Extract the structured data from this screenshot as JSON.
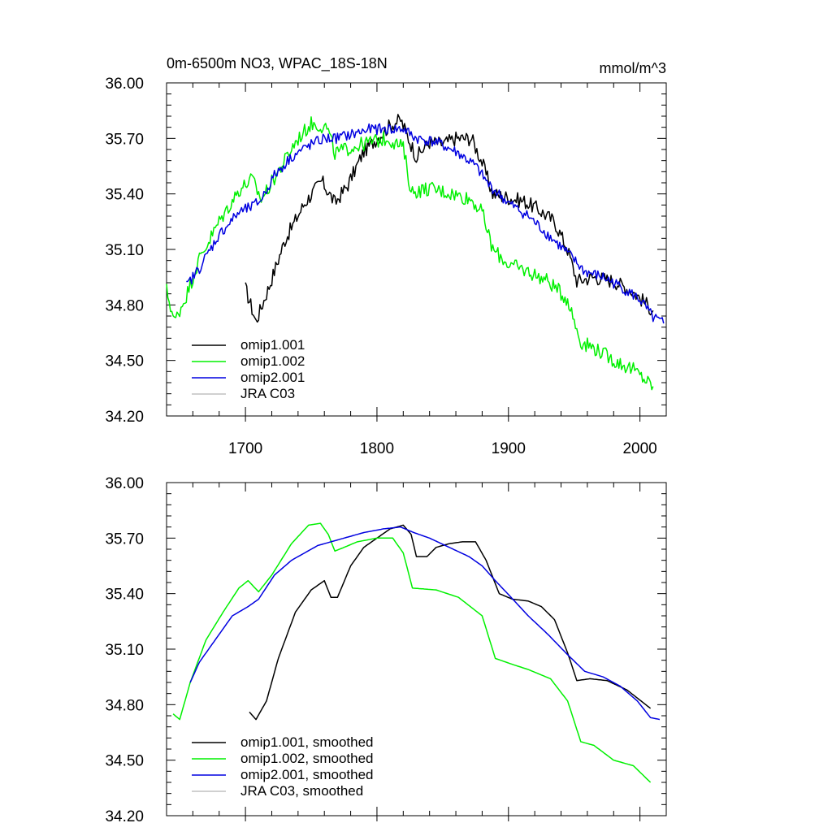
{
  "chart_data": [
    {
      "type": "line",
      "title": "0m-6500m NO3, WPAC_18S-18N",
      "units": "mmol/m^3",
      "xlim": [
        1640,
        2020
      ],
      "ylim": [
        34.2,
        36.0
      ],
      "xticks": [
        "1700",
        "1800",
        "1900",
        "2000"
      ],
      "yticks": [
        "34.20",
        "34.50",
        "34.80",
        "35.10",
        "35.40",
        "35.70",
        "36.00"
      ],
      "legend": [
        "omip1.001",
        "omip1.002",
        "omip2.001",
        "JRA C03"
      ],
      "series": [
        {
          "name": "omip1.001",
          "color": "#000000",
          "noise": 0.04,
          "x": [
            1700,
            1708,
            1718,
            1730,
            1745,
            1758,
            1768,
            1778,
            1790,
            1800,
            1810,
            1818,
            1824,
            1830,
            1840,
            1850,
            1860,
            1872,
            1880,
            1888,
            1900,
            1912,
            1922,
            1935,
            1945,
            1952,
            1965,
            1980,
            1995,
            2010
          ],
          "y": [
            34.89,
            34.71,
            34.9,
            35.15,
            35.35,
            35.47,
            35.35,
            35.45,
            35.63,
            35.7,
            35.77,
            35.8,
            35.7,
            35.6,
            35.68,
            35.67,
            35.7,
            35.7,
            35.57,
            35.4,
            35.38,
            35.36,
            35.32,
            35.25,
            35.1,
            34.93,
            34.95,
            34.93,
            34.87,
            34.77
          ]
        },
        {
          "name": "omip1.002",
          "color": "#00f000",
          "noise": 0.04,
          "x": [
            1640,
            1646,
            1655,
            1665,
            1680,
            1695,
            1705,
            1712,
            1725,
            1738,
            1750,
            1762,
            1768,
            1780,
            1795,
            1808,
            1820,
            1826,
            1840,
            1858,
            1872,
            1880,
            1888,
            1900,
            1915,
            1930,
            1945,
            1955,
            1965,
            1980,
            1995,
            2010
          ],
          "y": [
            34.88,
            34.71,
            34.85,
            35.05,
            35.25,
            35.42,
            35.48,
            35.37,
            35.52,
            35.68,
            35.78,
            35.76,
            35.62,
            35.65,
            35.68,
            35.7,
            35.65,
            35.41,
            35.43,
            35.4,
            35.37,
            35.3,
            35.1,
            35.02,
            34.98,
            34.93,
            34.83,
            34.6,
            34.57,
            34.5,
            34.45,
            34.36
          ]
        },
        {
          "name": "omip2.001",
          "color": "#0000e0",
          "noise": 0.03,
          "x": [
            1655,
            1665,
            1680,
            1695,
            1705,
            1712,
            1722,
            1735,
            1748,
            1760,
            1768,
            1780,
            1795,
            1810,
            1820,
            1830,
            1845,
            1862,
            1875,
            1885,
            1900,
            1915,
            1930,
            1945,
            1958,
            1972,
            1985,
            2000,
            2010,
            2018
          ],
          "y": [
            34.9,
            35.0,
            35.18,
            35.3,
            35.33,
            35.37,
            35.5,
            35.6,
            35.66,
            35.7,
            35.7,
            35.72,
            35.75,
            35.75,
            35.75,
            35.7,
            35.68,
            35.62,
            35.55,
            35.45,
            35.35,
            35.28,
            35.18,
            35.08,
            34.98,
            34.95,
            34.9,
            34.83,
            34.73,
            34.7
          ]
        },
        {
          "name": "JRA C03",
          "color": "#c0c0c0",
          "noise": 0,
          "x": [],
          "y": []
        }
      ]
    },
    {
      "type": "line",
      "title": "",
      "units": "",
      "xlim": [
        1640,
        2020
      ],
      "ylim": [
        34.2,
        36.0
      ],
      "xticks": [],
      "yticks": [
        "34.20",
        "34.50",
        "34.80",
        "35.10",
        "35.40",
        "35.70",
        "36.00"
      ],
      "legend": [
        "omip1.001, smoothed",
        "omip1.002, smoothed",
        "omip2.001, smoothed",
        "JRA C03, smoothed"
      ],
      "series": [
        {
          "name": "omip1.001, smoothed",
          "color": "#000000",
          "noise": 0,
          "x": [
            1703,
            1708,
            1716,
            1725,
            1738,
            1750,
            1760,
            1765,
            1770,
            1780,
            1790,
            1800,
            1810,
            1820,
            1826,
            1830,
            1838,
            1845,
            1855,
            1865,
            1875,
            1883,
            1893,
            1903,
            1915,
            1925,
            1935,
            1945,
            1952,
            1962,
            1975,
            1990,
            2008
          ],
          "y": [
            34.76,
            34.72,
            34.82,
            35.05,
            35.3,
            35.42,
            35.47,
            35.38,
            35.38,
            35.55,
            35.65,
            35.7,
            35.75,
            35.77,
            35.72,
            35.6,
            35.6,
            35.65,
            35.67,
            35.68,
            35.68,
            35.58,
            35.4,
            35.37,
            35.36,
            35.33,
            35.26,
            35.08,
            34.93,
            34.94,
            34.93,
            34.88,
            34.78
          ]
        },
        {
          "name": "omip1.002, smoothed",
          "color": "#00f000",
          "noise": 0,
          "x": [
            1645,
            1650,
            1658,
            1670,
            1683,
            1695,
            1702,
            1710,
            1720,
            1735,
            1748,
            1757,
            1763,
            1768,
            1775,
            1785,
            1800,
            1812,
            1820,
            1827,
            1845,
            1862,
            1880,
            1890,
            1902,
            1915,
            1932,
            1945,
            1955,
            1965,
            1980,
            1995,
            2008
          ],
          "y": [
            34.75,
            34.72,
            34.92,
            35.15,
            35.3,
            35.43,
            35.47,
            35.41,
            35.5,
            35.67,
            35.77,
            35.78,
            35.72,
            35.63,
            35.65,
            35.68,
            35.7,
            35.7,
            35.62,
            35.43,
            35.42,
            35.38,
            35.28,
            35.05,
            35.02,
            34.99,
            34.94,
            34.82,
            34.6,
            34.58,
            34.5,
            34.47,
            34.38
          ]
        },
        {
          "name": "omip2.001, smoothed",
          "color": "#0000e0",
          "noise": 0,
          "x": [
            1658,
            1665,
            1675,
            1690,
            1702,
            1710,
            1722,
            1735,
            1745,
            1755,
            1765,
            1775,
            1790,
            1805,
            1818,
            1828,
            1840,
            1855,
            1870,
            1880,
            1890,
            1902,
            1915,
            1930,
            1945,
            1958,
            1972,
            1985,
            1998,
            2008,
            2015
          ],
          "y": [
            34.92,
            35.03,
            35.13,
            35.28,
            35.33,
            35.37,
            35.5,
            35.58,
            35.62,
            35.66,
            35.68,
            35.7,
            35.73,
            35.75,
            35.76,
            35.73,
            35.7,
            35.65,
            35.6,
            35.55,
            35.47,
            35.38,
            35.28,
            35.18,
            35.07,
            34.98,
            34.95,
            34.9,
            34.82,
            34.73,
            34.72
          ]
        },
        {
          "name": "JRA C03, smoothed",
          "color": "#c0c0c0",
          "noise": 0,
          "x": [],
          "y": []
        }
      ]
    }
  ]
}
